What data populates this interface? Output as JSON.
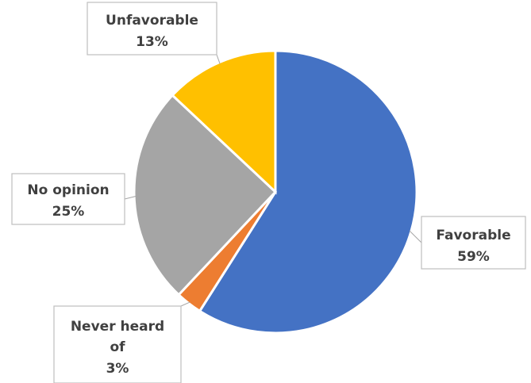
{
  "chart_data": {
    "type": "pie",
    "slices": [
      {
        "label": "Favorable",
        "value": 59,
        "value_label": "59%",
        "color": "#4472C4"
      },
      {
        "label": "Never heard of",
        "value": 3,
        "value_label": "3%",
        "color": "#ED7D31"
      },
      {
        "label": "No opinion",
        "value": 25,
        "value_label": "25%",
        "color": "#A5A5A5"
      },
      {
        "label": "Unfavorable",
        "value": 13,
        "value_label": "13%",
        "color": "#FFC000"
      }
    ],
    "start": "12 o'clock",
    "direction": "clockwise"
  }
}
